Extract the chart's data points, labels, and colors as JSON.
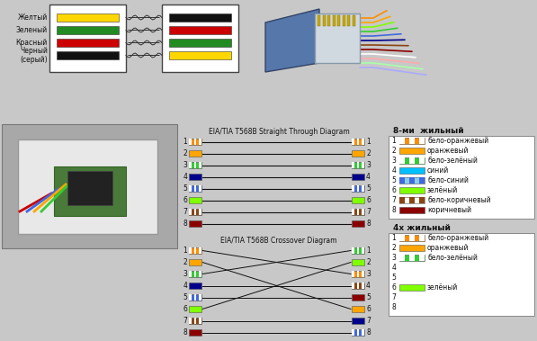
{
  "bg_color": "#c8c8c8",
  "straight_title": "EIA/TIA T568B Straight Through Diagram",
  "crossover_title": "EIA/TIA T568B Crossover Diagram",
  "legend8_title": "8-ми  жильный",
  "legend4_title": "4х жильный",
  "top_labels": [
    "Желтый",
    "Зеленый",
    "Красный",
    "Черный\n(серый)"
  ],
  "top_wire_colors_left": [
    "#FFD700",
    "#228B22",
    "#CC0000",
    "#111111"
  ],
  "top_wire_colors_right": [
    "#111111",
    "#CC0000",
    "#228B22",
    "#FFD700"
  ],
  "straight_left": [
    [
      "#FF8C00",
      true
    ],
    [
      "#FFA500",
      false
    ],
    [
      "#32CD32",
      true
    ],
    [
      "#00008B",
      false
    ],
    [
      "#4169E1",
      true
    ],
    [
      "#7FFF00",
      false
    ],
    [
      "#8B4513",
      true
    ],
    [
      "#8B0000",
      false
    ]
  ],
  "straight_right": [
    [
      "#FF8C00",
      true
    ],
    [
      "#FFA500",
      false
    ],
    [
      "#32CD32",
      true
    ],
    [
      "#00008B",
      false
    ],
    [
      "#4169E1",
      true
    ],
    [
      "#7FFF00",
      false
    ],
    [
      "#8B4513",
      true
    ],
    [
      "#8B0000",
      false
    ]
  ],
  "crossover_left": [
    [
      "#FF8C00",
      true
    ],
    [
      "#FFA500",
      false
    ],
    [
      "#32CD32",
      true
    ],
    [
      "#00008B",
      false
    ],
    [
      "#4169E1",
      true
    ],
    [
      "#7FFF00",
      false
    ],
    [
      "#8B4513",
      true
    ],
    [
      "#8B0000",
      false
    ]
  ],
  "crossover_right": [
    [
      "#32CD32",
      true
    ],
    [
      "#7FFF00",
      false
    ],
    [
      "#FF8C00",
      true
    ],
    [
      "#8B4513",
      true
    ],
    [
      "#8B0000",
      false
    ],
    [
      "#FFA500",
      false
    ],
    [
      "#00008B",
      false
    ],
    [
      "#4169E1",
      true
    ]
  ],
  "crossover_map": [
    3,
    6,
    1,
    4,
    5,
    2,
    7,
    8
  ],
  "legend8": [
    [
      "#FF8C00",
      true,
      "white",
      "бело-оранжевый"
    ],
    [
      "#FFA500",
      false,
      null,
      "оранжевый"
    ],
    [
      "#32CD32",
      true,
      "white",
      "бело-зелёный"
    ],
    [
      "#00BFFF",
      false,
      null,
      "синий"
    ],
    [
      "#87CEEB",
      true,
      "#4169E1",
      "бело-синий"
    ],
    [
      "#7FFF00",
      false,
      null,
      "зелёный"
    ],
    [
      "#ffffff",
      true,
      "#8B4513",
      "бело-коричневый"
    ],
    [
      "#8B0000",
      false,
      null,
      "коричневый"
    ]
  ],
  "legend4": [
    [
      "#FF8C00",
      true,
      "white",
      "бело-оранжевый"
    ],
    [
      "#FFA500",
      false,
      null,
      "оранжевый"
    ],
    [
      "#32CD32",
      true,
      "white",
      "бело-зелёный"
    ],
    [
      null,
      false,
      null,
      ""
    ],
    [
      null,
      false,
      null,
      ""
    ],
    [
      "#7FFF00",
      false,
      null,
      "зелёный"
    ],
    [
      null,
      false,
      null,
      ""
    ],
    [
      null,
      false,
      null,
      ""
    ]
  ]
}
